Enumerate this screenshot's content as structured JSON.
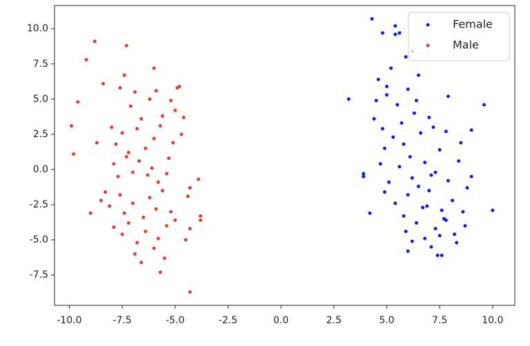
{
  "chart_data": {
    "type": "scatter",
    "series": [
      {
        "name": "Female",
        "color": "#0a1cf5",
        "x": [
          4.3,
          5.4,
          4.8,
          5.4,
          5.6,
          6.2,
          5.9,
          3.2,
          3.9,
          3.9,
          4.2,
          9.6,
          10.0,
          9.0,
          9.0,
          8.8,
          7.9,
          6.5,
          5.2,
          7.4,
          7.6,
          6.0,
          8.3,
          4.5,
          5.0,
          4.6,
          5.0,
          5.5,
          6.0,
          6.4,
          4.4,
          4.8,
          5.7,
          6.3,
          7.0,
          4.9,
          5.3,
          5.8,
          6.6,
          7.2,
          7.8,
          8.5,
          4.7,
          6.1,
          7.5,
          5.1,
          5.6,
          6.2,
          6.8,
          7.3,
          7.9,
          8.4,
          4.9,
          6.5,
          7.1,
          5.4,
          6.0,
          6.7,
          7.0,
          7.6,
          8.1,
          8.6,
          5.8,
          6.9,
          7.7,
          5.9,
          6.4,
          6.8,
          7.3,
          7.8,
          8.2,
          8.7,
          6.2,
          7.1,
          7.5
        ],
        "y": [
          10.7,
          10.2,
          9.7,
          9.6,
          9.7,
          8.4,
          8.0,
          5.0,
          -0.3,
          -0.5,
          -3.1,
          4.6,
          -2.9,
          2.8,
          -0.5,
          -1.3,
          5.2,
          6.7,
          7.2,
          -6.1,
          -6.1,
          -5.8,
          -5.2,
          4.9,
          5.9,
          6.4,
          5.3,
          4.6,
          5.7,
          4.9,
          3.6,
          2.9,
          3.3,
          4.0,
          3.7,
          1.5,
          2.3,
          1.8,
          2.6,
          3.0,
          2.7,
          1.9,
          0.4,
          0.9,
          1.4,
          -0.9,
          0.2,
          -0.6,
          0.5,
          -0.2,
          -0.8,
          0.6,
          -1.6,
          -1.2,
          -0.4,
          -2.4,
          -1.8,
          -2.7,
          -1.5,
          -2.9,
          -2.2,
          -3.0,
          -3.3,
          -2.6,
          -3.5,
          -4.4,
          -3.8,
          -4.9,
          -4.2,
          -3.6,
          -4.6,
          -4.0,
          -5.1,
          -5.5,
          -4.7
        ]
      },
      {
        "name": "Male",
        "color": "#e8392a",
        "x": [
          -8.8,
          -9.2,
          -7.3,
          -6.0,
          -9.6,
          -9.9,
          -9.8,
          -9.0,
          -8.7,
          -8.4,
          -4.3,
          -3.8,
          -3.8,
          -3.9,
          -4.8,
          -4.9,
          -4.6,
          -4.7,
          -4.4,
          -4.3,
          -4.3,
          -4.5,
          -5.7,
          -5.5,
          -6.6,
          -7.6,
          -7.4,
          -7.1,
          -6.9,
          -6.6,
          -6.2,
          -5.9,
          -5.6,
          -5.2,
          -5.0,
          -8.0,
          -7.8,
          -7.5,
          -7.2,
          -6.8,
          -6.4,
          -6.0,
          -5.7,
          -5.3,
          -5.1,
          -8.3,
          -7.9,
          -7.7,
          -7.3,
          -7.0,
          -6.7,
          -6.3,
          -6.1,
          -5.8,
          -5.4,
          -8.5,
          -8.1,
          -7.6,
          -7.4,
          -7.0,
          -6.5,
          -6.2,
          -5.9,
          -5.6,
          -5.2,
          -7.9,
          -7.5,
          -7.2,
          -6.8,
          -6.4,
          -6.0,
          -5.8,
          -5.4,
          -5.0,
          -6.9
        ],
        "y": [
          9.1,
          7.8,
          8.8,
          7.2,
          4.8,
          3.1,
          1.1,
          -3.1,
          1.9,
          6.1,
          -8.7,
          -3.3,
          -3.6,
          -0.7,
          5.9,
          5.8,
          3.7,
          2.5,
          -1.9,
          -1.3,
          -4.2,
          -5.0,
          -7.3,
          -6.3,
          -6.6,
          5.8,
          6.7,
          4.5,
          5.5,
          3.6,
          5.0,
          5.6,
          3.8,
          4.9,
          4.2,
          3.0,
          1.8,
          2.6,
          1.2,
          2.9,
          1.5,
          2.2,
          3.1,
          0.8,
          1.9,
          -1.6,
          0.4,
          -0.5,
          0.9,
          -0.2,
          0.6,
          -0.4,
          0.1,
          -0.9,
          -0.3,
          -2.2,
          -2.6,
          -1.8,
          -3.1,
          -2.4,
          -3.4,
          -2.0,
          -2.8,
          -1.5,
          -3.0,
          -4.1,
          -4.6,
          -3.8,
          -5.2,
          -4.4,
          -5.6,
          -4.9,
          -4.0,
          -3.6,
          -6.0
        ]
      }
    ],
    "xlim": [
      -10.7,
      11.05
    ],
    "ylim": [
      -9.65,
      11.65
    ],
    "xticks": [
      {
        "value": -10,
        "label": "-10.0"
      },
      -7.5,
      {
        "value": -5,
        "label": "-5.0"
      },
      -2.5,
      {
        "value": 0,
        "label": "0.0"
      },
      2.5,
      {
        "value": 5,
        "label": "5.0"
      },
      7.5,
      {
        "value": 10,
        "label": "10.0"
      }
    ],
    "yticks": [
      -7.5,
      {
        "value": -5,
        "label": "-5.0"
      },
      -2.5,
      {
        "value": 0,
        "label": "0.0"
      },
      2.5,
      {
        "value": 5,
        "label": "5.0"
      },
      7.5,
      {
        "value": 10,
        "label": "10.0"
      }
    ],
    "grid": false,
    "legend": "upper right"
  }
}
